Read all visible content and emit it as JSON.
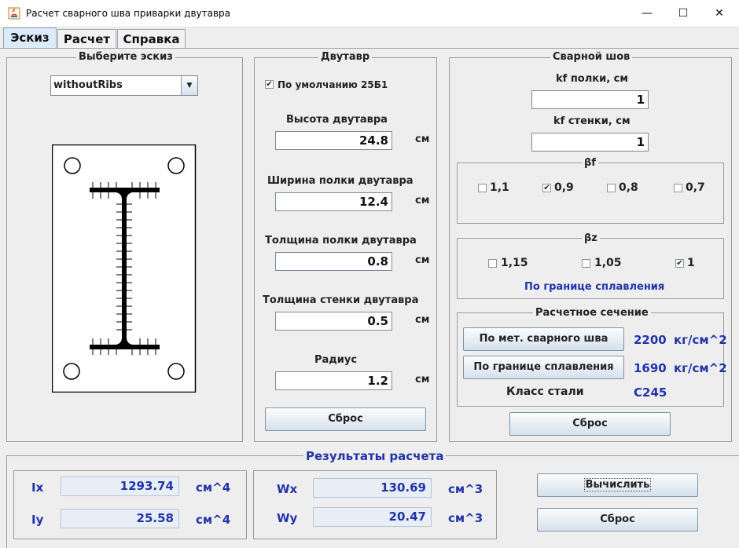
{
  "window": {
    "title": "Расчет сварного шва приварки двутавра",
    "minimize_glyph": "—",
    "maximize_glyph": "☐",
    "close_glyph": "✕"
  },
  "tabs": [
    {
      "label": "Эскиз",
      "active": true
    },
    {
      "label": "Расчет",
      "active": false
    },
    {
      "label": "Справка",
      "active": false
    }
  ],
  "sketch": {
    "group_title": "Выберите эскиз",
    "dropdown_value": "withoutRibs",
    "dropdown_arrow": "▼"
  },
  "beam": {
    "group_title": "Двутавр",
    "default_checkbox_label": "По умолчанию 25Б1",
    "default_checked": true,
    "fields": [
      {
        "label": "Высота двутавра",
        "value": "24.8",
        "unit": "см"
      },
      {
        "label": "Ширина полки двутавра",
        "value": "12.4",
        "unit": "см"
      },
      {
        "label": "Толщина полки двутавра",
        "value": "0.8",
        "unit": "см"
      },
      {
        "label": "Толщина стенки двутавра",
        "value": "0.5",
        "unit": "см"
      },
      {
        "label": "Радиус",
        "value": "1.2",
        "unit": "см"
      }
    ],
    "reset_label": "Сброс"
  },
  "weld": {
    "group_title": "Сварной шов",
    "kf_flange_label": "kf полки, см",
    "kf_flange_value": "1",
    "kf_web_label": "kf стенки, см",
    "kf_web_value": "1",
    "beta_f": {
      "title": "βf",
      "options": [
        {
          "label": "1,1",
          "checked": false
        },
        {
          "label": "0,9",
          "checked": true
        },
        {
          "label": "0,8",
          "checked": false
        },
        {
          "label": "0,7",
          "checked": false
        }
      ]
    },
    "beta_z": {
      "title": "βz",
      "options": [
        {
          "label": "1,15",
          "checked": false
        },
        {
          "label": "1,05",
          "checked": false
        },
        {
          "label": "1",
          "checked": true
        }
      ],
      "note": "По границе сплавления"
    },
    "section": {
      "title": "Расчетное сечение",
      "metal_button": "По мет. сварного шва",
      "metal_value": "2200",
      "metal_unit": "кг/см^2",
      "fusion_button": "По границе сплавления",
      "fusion_value": "1690",
      "fusion_unit": "кг/см^2",
      "steel_class_label": "Класс стали",
      "steel_class_value": "С245"
    },
    "reset_label": "Сброс"
  },
  "results": {
    "group_title": "Результаты расчета",
    "ix_label": "Ix",
    "ix_value": "1293.74",
    "ix_unit": "см^4",
    "iy_label": "Iy",
    "iy_value": "25.58",
    "iy_unit": "см^4",
    "wx_label": "Wx",
    "wx_value": "130.69",
    "wx_unit": "см^3",
    "wy_label": "Wy",
    "wy_value": "20.47",
    "wy_unit": "см^3",
    "calculate_label": "Вычислить",
    "reset_label": "Сброс"
  },
  "checkmark_glyph": "✔",
  "colors": {
    "accent_blue": "#2233aa",
    "tab_active": "#dcebf8",
    "button_top": "#fbfcfd",
    "button_bottom": "#d6e1ec"
  }
}
